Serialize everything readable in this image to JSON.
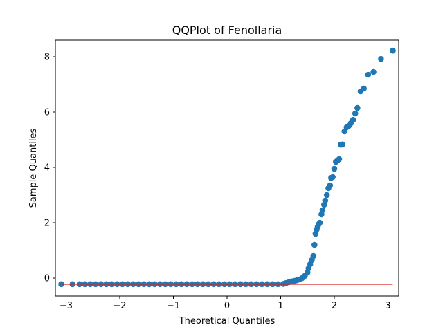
{
  "chart_data": {
    "type": "scatter",
    "title": "QQPlot of Fenollaria",
    "xlabel": "Theoretical Quantiles",
    "ylabel": "Sample Quantiles",
    "xlim": [
      -3.2,
      3.2
    ],
    "ylim": [
      -0.65,
      8.6
    ],
    "xticks": [
      -3,
      -2,
      -1,
      0,
      1,
      2,
      3
    ],
    "xtick_labels": [
      "−3",
      "−2",
      "−1",
      "0",
      "1",
      "2",
      "3"
    ],
    "yticks": [
      0,
      2,
      4,
      6,
      8
    ],
    "ytick_labels": [
      "0",
      "2",
      "4",
      "6",
      "8"
    ],
    "grid": false,
    "legend": "none",
    "colors": {
      "points": "#1f77b4",
      "reference_line": "#d62728"
    },
    "reference_line": {
      "x": [
        -3.09,
        3.09
      ],
      "y": [
        -0.22,
        -0.22
      ]
    },
    "series": [
      {
        "points": [
          [
            -3.09,
            -0.22
          ],
          [
            -2.88,
            -0.22
          ],
          [
            -2.75,
            -0.22
          ],
          [
            -2.65,
            -0.22
          ],
          [
            -2.55,
            -0.22
          ],
          [
            -2.45,
            -0.22
          ],
          [
            -2.35,
            -0.22
          ],
          [
            -2.25,
            -0.22
          ],
          [
            -2.15,
            -0.22
          ],
          [
            -2.05,
            -0.22
          ],
          [
            -1.95,
            -0.22
          ],
          [
            -1.85,
            -0.22
          ],
          [
            -1.75,
            -0.22
          ],
          [
            -1.65,
            -0.22
          ],
          [
            -1.55,
            -0.22
          ],
          [
            -1.45,
            -0.22
          ],
          [
            -1.35,
            -0.22
          ],
          [
            -1.25,
            -0.22
          ],
          [
            -1.15,
            -0.22
          ],
          [
            -1.05,
            -0.22
          ],
          [
            -0.95,
            -0.22
          ],
          [
            -0.85,
            -0.22
          ],
          [
            -0.75,
            -0.22
          ],
          [
            -0.65,
            -0.22
          ],
          [
            -0.55,
            -0.22
          ],
          [
            -0.45,
            -0.22
          ],
          [
            -0.35,
            -0.22
          ],
          [
            -0.25,
            -0.22
          ],
          [
            -0.15,
            -0.22
          ],
          [
            -0.05,
            -0.22
          ],
          [
            0.05,
            -0.22
          ],
          [
            0.15,
            -0.22
          ],
          [
            0.25,
            -0.22
          ],
          [
            0.35,
            -0.22
          ],
          [
            0.45,
            -0.22
          ],
          [
            0.55,
            -0.22
          ],
          [
            0.65,
            -0.22
          ],
          [
            0.75,
            -0.22
          ],
          [
            0.85,
            -0.22
          ],
          [
            0.95,
            -0.22
          ],
          [
            1.05,
            -0.21
          ],
          [
            1.1,
            -0.18
          ],
          [
            1.15,
            -0.15
          ],
          [
            1.2,
            -0.12
          ],
          [
            1.25,
            -0.1
          ],
          [
            1.3,
            -0.08
          ],
          [
            1.35,
            -0.05
          ],
          [
            1.4,
            0.0
          ],
          [
            1.45,
            0.08
          ],
          [
            1.5,
            0.2
          ],
          [
            1.52,
            0.35
          ],
          [
            1.55,
            0.5
          ],
          [
            1.58,
            0.65
          ],
          [
            1.61,
            0.8
          ],
          [
            1.63,
            1.2
          ],
          [
            1.65,
            1.6
          ],
          [
            1.67,
            1.75
          ],
          [
            1.69,
            1.85
          ],
          [
            1.71,
            1.95
          ],
          [
            1.73,
            2.0
          ],
          [
            1.76,
            2.3
          ],
          [
            1.78,
            2.45
          ],
          [
            1.81,
            2.65
          ],
          [
            1.83,
            2.8
          ],
          [
            1.86,
            3.0
          ],
          [
            1.89,
            3.25
          ],
          [
            1.92,
            3.35
          ],
          [
            1.94,
            3.62
          ],
          [
            1.97,
            3.65
          ],
          [
            2.0,
            3.95
          ],
          [
            2.03,
            4.2
          ],
          [
            2.06,
            4.25
          ],
          [
            2.09,
            4.3
          ],
          [
            2.12,
            4.82
          ],
          [
            2.15,
            4.83
          ],
          [
            2.19,
            5.3
          ],
          [
            2.23,
            5.45
          ],
          [
            2.27,
            5.5
          ],
          [
            2.31,
            5.6
          ],
          [
            2.35,
            5.72
          ],
          [
            2.39,
            5.95
          ],
          [
            2.43,
            6.15
          ],
          [
            2.49,
            6.75
          ],
          [
            2.55,
            6.85
          ],
          [
            2.63,
            7.35
          ],
          [
            2.73,
            7.45
          ],
          [
            2.87,
            7.92
          ],
          [
            3.09,
            8.22
          ]
        ]
      }
    ]
  }
}
